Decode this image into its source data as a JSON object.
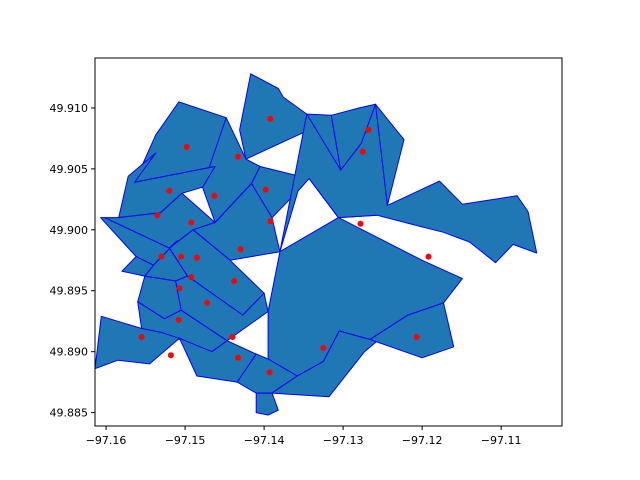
{
  "chart_data": {
    "type": "scatter",
    "title": "",
    "xlabel": "",
    "ylabel": "",
    "xlim": [
      -97.1614,
      -97.1023
    ],
    "ylim": [
      49.8839,
      49.9141
    ],
    "x_ticks": [
      -97.16,
      -97.15,
      -97.14,
      -97.13,
      -97.12,
      -97.11
    ],
    "x_tick_labels": [
      "−97.16",
      "−97.15",
      "−97.14",
      "−97.13",
      "−97.12",
      "−97.11"
    ],
    "y_ticks": [
      49.885,
      49.89,
      49.895,
      49.9,
      49.905,
      49.91
    ],
    "y_tick_labels": [
      "49.885",
      "49.890",
      "49.895",
      "49.900",
      "49.905",
      "49.910"
    ],
    "grid": false,
    "polygon_fill": "#1f77b4",
    "polygon_edge": "#0000ff",
    "point_color": "#ff0000",
    "regions": [
      [
        [
          -97.1417,
          49.9128
        ],
        [
          -97.1382,
          49.9116
        ],
        [
          -97.1376,
          49.9109
        ],
        [
          -97.1346,
          49.9095
        ],
        [
          -97.1343,
          49.9082
        ],
        [
          -97.1423,
          49.9058
        ],
        [
          -97.1431,
          49.9082
        ]
      ],
      [
        [
          -97.1508,
          49.9105
        ],
        [
          -97.1448,
          49.9092
        ],
        [
          -97.1462,
          49.9052
        ],
        [
          -97.1564,
          49.9039
        ],
        [
          -97.1537,
          49.9078
        ]
      ],
      [
        [
          -97.1448,
          49.9092
        ],
        [
          -97.1423,
          49.9058
        ],
        [
          -97.1405,
          49.9052
        ],
        [
          -97.1416,
          49.9038
        ],
        [
          -97.1462,
          49.9006
        ],
        [
          -97.1478,
          49.9035
        ]
      ],
      [
        [
          -97.1346,
          49.9095
        ],
        [
          -97.1315,
          49.9094
        ],
        [
          -97.1303,
          49.9049
        ],
        [
          -97.1274,
          49.9032
        ],
        [
          -97.1257,
          49.9012
        ],
        [
          -97.1306,
          49.901
        ],
        [
          -97.1343,
          49.9042
        ]
      ],
      [
        [
          -97.1315,
          49.9094
        ],
        [
          -97.128,
          49.91
        ],
        [
          -97.1259,
          49.9103
        ],
        [
          -97.1223,
          49.9074
        ],
        [
          -97.1244,
          49.902
        ],
        [
          -97.1303,
          49.9049
        ]
      ],
      [
        [
          -97.1564,
          49.9039
        ],
        [
          -97.1537,
          49.9063
        ],
        [
          -97.1572,
          49.9044
        ],
        [
          -97.1584,
          49.901
        ],
        [
          -97.1531,
          49.9014
        ],
        [
          -97.1504,
          49.903
        ],
        [
          -97.1478,
          49.9035
        ],
        [
          -97.1462,
          49.9052
        ]
      ],
      [
        [
          -97.1405,
          49.9052
        ],
        [
          -97.1343,
          49.9042
        ],
        [
          -97.1357,
          49.9032
        ],
        [
          -97.139,
          49.901
        ],
        [
          -97.1416,
          49.9038
        ]
      ],
      [
        [
          -97.1584,
          49.901
        ],
        [
          -97.1531,
          49.9014
        ],
        [
          -97.1504,
          49.903
        ],
        [
          -97.1462,
          49.9006
        ],
        [
          -97.149,
          49.9
        ],
        [
          -97.152,
          49.8985
        ],
        [
          -97.1602,
          49.901
        ]
      ],
      [
        [
          -97.1462,
          49.9006
        ],
        [
          -97.1416,
          49.9038
        ],
        [
          -97.139,
          49.901
        ],
        [
          -97.138,
          49.8982
        ],
        [
          -97.1443,
          49.8975
        ],
        [
          -97.149,
          49.9
        ]
      ],
      [
        [
          -97.1602,
          49.901
        ],
        [
          -97.152,
          49.8985
        ],
        [
          -97.151,
          49.8991
        ],
        [
          -97.154,
          49.8971
        ],
        [
          -97.1562,
          49.8978
        ],
        [
          -97.1607,
          49.901
        ]
      ],
      [
        [
          -97.149,
          49.9
        ],
        [
          -97.1443,
          49.8975
        ],
        [
          -97.14,
          49.8948
        ],
        [
          -97.1427,
          49.893
        ],
        [
          -97.1497,
          49.8962
        ],
        [
          -97.152,
          49.8985
        ]
      ],
      [
        [
          -97.138,
          49.8982
        ],
        [
          -97.1357,
          49.9032
        ],
        [
          -97.1343,
          49.9042
        ],
        [
          -97.1306,
          49.901
        ],
        [
          -97.1257,
          49.9012
        ],
        [
          -97.121,
          49.9004
        ],
        [
          -97.1173,
          49.8998
        ],
        [
          -97.114,
          49.899
        ],
        [
          -97.1107,
          49.8973
        ],
        [
          -97.1085,
          49.8988
        ],
        [
          -97.1055,
          49.8981
        ],
        [
          -97.1066,
          49.9015
        ],
        [
          -97.108,
          49.9028
        ],
        [
          -97.1149,
          49.9021
        ],
        [
          -97.1178,
          49.904
        ],
        [
          -97.1244,
          49.902
        ],
        [
          -97.1259,
          49.9103
        ],
        [
          -97.1277,
          49.9071
        ],
        [
          -97.1303,
          49.9049
        ],
        [
          -97.1346,
          49.9095
        ]
      ],
      [
        [
          -97.154,
          49.8971
        ],
        [
          -97.151,
          49.8991
        ],
        [
          -97.152,
          49.8985
        ],
        [
          -97.1497,
          49.8962
        ],
        [
          -97.1512,
          49.8958
        ],
        [
          -97.1551,
          49.8962
        ]
      ],
      [
        [
          -97.1562,
          49.8978
        ],
        [
          -97.154,
          49.8971
        ],
        [
          -97.1551,
          49.8962
        ],
        [
          -97.158,
          49.8966
        ]
      ],
      [
        [
          -97.1512,
          49.8958
        ],
        [
          -97.1497,
          49.8962
        ],
        [
          -97.1427,
          49.893
        ],
        [
          -97.14,
          49.8948
        ],
        [
          -97.1395,
          49.8933
        ],
        [
          -97.1447,
          49.8909
        ],
        [
          -97.1505,
          49.8934
        ]
      ],
      [
        [
          -97.1551,
          49.8962
        ],
        [
          -97.1512,
          49.8958
        ],
        [
          -97.1505,
          49.8934
        ],
        [
          -97.1526,
          49.8927
        ],
        [
          -97.156,
          49.8941
        ]
      ],
      [
        [
          -97.156,
          49.8941
        ],
        [
          -97.1526,
          49.8927
        ],
        [
          -97.1505,
          49.8934
        ],
        [
          -97.1447,
          49.8909
        ],
        [
          -97.1466,
          49.89
        ],
        [
          -97.1531,
          49.8916
        ],
        [
          -97.1555,
          49.8919
        ]
      ],
      [
        [
          -97.1395,
          49.8933
        ],
        [
          -97.138,
          49.8982
        ],
        [
          -97.1306,
          49.901
        ],
        [
          -97.12,
          49.8975
        ],
        [
          -97.1149,
          49.896
        ],
        [
          -97.1173,
          49.894
        ],
        [
          -97.1218,
          49.893
        ],
        [
          -97.1266,
          49.891
        ],
        [
          -97.1305,
          49.8917
        ],
        [
          -97.1325,
          49.8892
        ],
        [
          -97.1358,
          49.888
        ],
        [
          -97.1395,
          49.8894
        ]
      ],
      [
        [
          -97.1606,
          49.8929
        ],
        [
          -97.1555,
          49.8919
        ],
        [
          -97.1531,
          49.8916
        ],
        [
          -97.1507,
          49.8911
        ],
        [
          -97.1545,
          49.889
        ],
        [
          -97.1585,
          49.8893
        ],
        [
          -97.1614,
          49.8886
        ]
      ],
      [
        [
          -97.1507,
          49.8911
        ],
        [
          -97.1466,
          49.89
        ],
        [
          -97.1447,
          49.8909
        ],
        [
          -97.141,
          49.8898
        ],
        [
          -97.1434,
          49.8875
        ],
        [
          -97.1485,
          49.888
        ]
      ],
      [
        [
          -97.141,
          49.8898
        ],
        [
          -97.1395,
          49.8894
        ],
        [
          -97.1358,
          49.888
        ],
        [
          -97.139,
          49.8866
        ],
        [
          -97.141,
          49.8866
        ],
        [
          -97.1434,
          49.8875
        ]
      ],
      [
        [
          -97.1358,
          49.888
        ],
        [
          -97.1325,
          49.8892
        ],
        [
          -97.1305,
          49.8917
        ],
        [
          -97.1266,
          49.891
        ],
        [
          -97.1218,
          49.893
        ],
        [
          -97.1273,
          49.89
        ],
        [
          -97.1318,
          49.8863
        ],
        [
          -97.139,
          49.8866
        ]
      ],
      [
        [
          -97.1266,
          49.891
        ],
        [
          -97.12,
          49.8895
        ],
        [
          -97.116,
          49.8904
        ],
        [
          -97.1173,
          49.894
        ],
        [
          -97.1218,
          49.893
        ]
      ],
      [
        [
          -97.141,
          49.8866
        ],
        [
          -97.139,
          49.8866
        ],
        [
          -97.1382,
          49.8852
        ],
        [
          -97.1395,
          49.8848
        ],
        [
          -97.141,
          49.885
        ]
      ]
    ],
    "points": [
      {
        "x": -97.1392,
        "y": 49.9091
      },
      {
        "x": -97.1498,
        "y": 49.9068
      },
      {
        "x": -97.1433,
        "y": 49.906
      },
      {
        "x": -97.1268,
        "y": 49.9082
      },
      {
        "x": -97.1275,
        "y": 49.9064
      },
      {
        "x": -97.152,
        "y": 49.9032
      },
      {
        "x": -97.1463,
        "y": 49.9028
      },
      {
        "x": -97.1398,
        "y": 49.9033
      },
      {
        "x": -97.1535,
        "y": 49.9012
      },
      {
        "x": -97.1492,
        "y": 49.9006
      },
      {
        "x": -97.1392,
        "y": 49.9007
      },
      {
        "x": -97.1278,
        "y": 49.9005
      },
      {
        "x": -97.143,
        "y": 49.8984
      },
      {
        "x": -97.153,
        "y": 49.8978
      },
      {
        "x": -97.1505,
        "y": 49.8978
      },
      {
        "x": -97.1485,
        "y": 49.8977
      },
      {
        "x": -97.1192,
        "y": 49.8978
      },
      {
        "x": -97.1492,
        "y": 49.8961
      },
      {
        "x": -97.1438,
        "y": 49.8958
      },
      {
        "x": -97.1507,
        "y": 49.8952
      },
      {
        "x": -97.1472,
        "y": 49.894
      },
      {
        "x": -97.1508,
        "y": 49.8926
      },
      {
        "x": -97.1555,
        "y": 49.8912
      },
      {
        "x": -97.144,
        "y": 49.8912
      },
      {
        "x": -97.1207,
        "y": 49.8912
      },
      {
        "x": -97.1325,
        "y": 49.8903
      },
      {
        "x": -97.1518,
        "y": 49.8897
      },
      {
        "x": -97.1433,
        "y": 49.8895
      },
      {
        "x": -97.1393,
        "y": 49.8883
      }
    ]
  }
}
